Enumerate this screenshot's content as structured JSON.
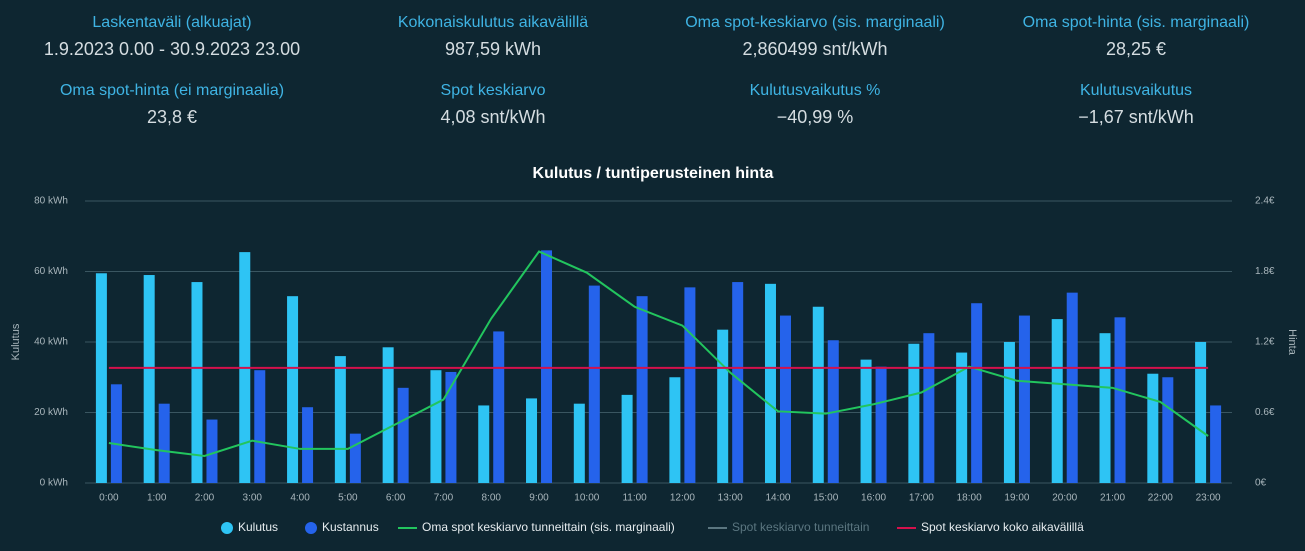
{
  "stats": [
    {
      "label": "Laskentaväli (alkuajat)",
      "value": "1.9.2023 0.00 - 30.9.2023 23.00"
    },
    {
      "label": "Kokonaiskulutus aikavälillä",
      "value": "987,59 kWh"
    },
    {
      "label": "Oma spot-keskiarvo (sis. marginaali)",
      "value": "2,860499 snt/kWh"
    },
    {
      "label": "Oma spot-hinta (sis. marginaali)",
      "value": "28,25 €"
    },
    {
      "label": "Oma spot-hinta (ei marginaalia)",
      "value": "23,8 €"
    },
    {
      "label": "Spot keskiarvo",
      "value": "4,08 snt/kWh"
    },
    {
      "label": "Kulutusvaikutus %",
      "value": "−40,99 %"
    },
    {
      "label": "Kulutusvaikutus",
      "value": "−1,67 snt/kWh"
    }
  ],
  "chart_data": {
    "type": "bar",
    "title": "Kulutus / tuntiperusteinen hinta",
    "y_label": "Kulutus",
    "y2_label": "Hinta",
    "categories": [
      "0:00",
      "1:00",
      "2:00",
      "3:00",
      "4:00",
      "5:00",
      "6:00",
      "7:00",
      "8:00",
      "9:00",
      "10:00",
      "11:00",
      "12:00",
      "13:00",
      "14:00",
      "15:00",
      "16:00",
      "17:00",
      "18:00",
      "19:00",
      "20:00",
      "21:00",
      "22:00",
      "23:00"
    ],
    "ylim": [
      0,
      80
    ],
    "yticks": [
      {
        "value": 0,
        "label": "0 kWh"
      },
      {
        "value": 20,
        "label": "20 kWh"
      },
      {
        "value": 40,
        "label": "40 kWh"
      },
      {
        "value": 60,
        "label": "60 kWh"
      },
      {
        "value": 80,
        "label": "80 kWh"
      }
    ],
    "y2lim": [
      0,
      2.4
    ],
    "y2ticks": [
      {
        "value": 0,
        "label": "0€"
      },
      {
        "value": 0.6,
        "label": "0.6€"
      },
      {
        "value": 1.2,
        "label": "1.2€"
      },
      {
        "value": 1.8,
        "label": "1.8€"
      },
      {
        "value": 2.4,
        "label": "2.4€"
      }
    ],
    "grid": true,
    "series": [
      {
        "name": "Kulutus",
        "type": "bar",
        "color": "#2ec4f4",
        "values": [
          59.5,
          59,
          57,
          65.5,
          53,
          36,
          38.5,
          32,
          22,
          24,
          22.5,
          25,
          30,
          43.5,
          56.5,
          50,
          35,
          39.5,
          37,
          40,
          46.5,
          42.5,
          31,
          40
        ]
      },
      {
        "name": "Kustannus",
        "type": "bar",
        "axis": "y2",
        "color": "#2563eb",
        "values": [
          0.84,
          0.675,
          0.54,
          0.96,
          0.645,
          0.42,
          0.81,
          0.945,
          1.29,
          1.98,
          1.68,
          1.59,
          1.665,
          1.71,
          1.425,
          1.215,
          0.99,
          1.275,
          1.53,
          1.425,
          1.62,
          1.41,
          0.9,
          0.66
        ]
      },
      {
        "name": "Oma spot keskiarvo tunneittain (sis. marginaali)",
        "type": "line",
        "axis": "y2",
        "color": "#22c55e",
        "values": [
          0.34,
          0.28,
          0.23,
          0.36,
          0.29,
          0.29,
          0.5,
          0.71,
          1.4,
          1.97,
          1.79,
          1.5,
          1.34,
          0.94,
          0.61,
          0.59,
          0.67,
          0.77,
          0.99,
          0.87,
          0.84,
          0.81,
          0.69,
          0.4
        ]
      },
      {
        "name": "Spot keskiarvo tunneittain",
        "type": "line",
        "axis": "y2",
        "color": "#5b7680",
        "hidden": true
      },
      {
        "name": "Spot keskiarvo koko aikavälillä",
        "type": "line",
        "axis": "y2",
        "color": "#d4114c",
        "values": [
          0.98,
          0.98,
          0.98,
          0.98,
          0.98,
          0.98,
          0.98,
          0.98,
          0.98,
          0.98,
          0.98,
          0.98,
          0.98,
          0.98,
          0.98,
          0.98,
          0.98,
          0.98,
          0.98,
          0.98,
          0.98,
          0.98,
          0.98,
          0.98
        ]
      }
    ]
  }
}
